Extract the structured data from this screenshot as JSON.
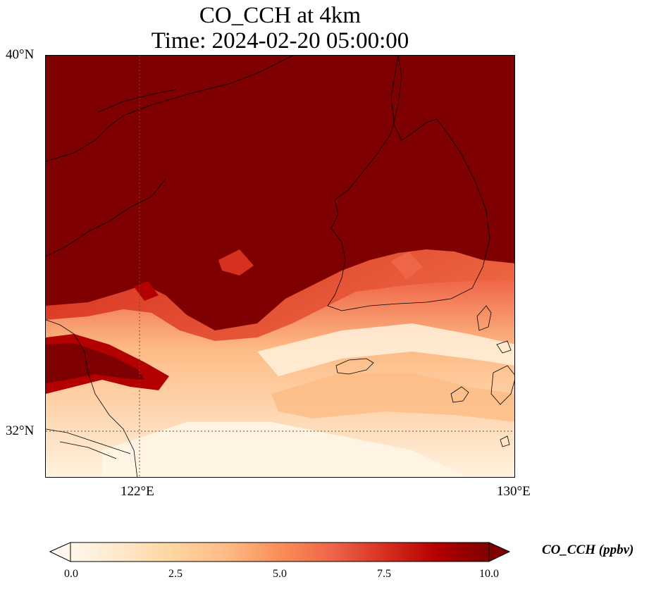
{
  "title": {
    "line1": "CO_CCH at 4km",
    "line2": "Time: 2024-02-20 05:00:00"
  },
  "map": {
    "lat_range": [
      31,
      40
    ],
    "lon_range": [
      120,
      130
    ],
    "gridlines": {
      "lat": [
        32
      ],
      "lon": [
        122
      ],
      "style": "dotted"
    },
    "lat_tick_labels": [
      "40°N",
      "32°N"
    ],
    "lon_tick_labels": [
      "122°E",
      "130°E"
    ],
    "colormap": "OrRd",
    "field_summary": "High CO_CCH (>10 ppbv, dark red) over the north and the Korean Peninsula; lower values (0–5 ppbv, pale) over the East China Sea south of ~34°N, with a dark-red tongue near 33°N off the Chinese coast"
  },
  "colorbar": {
    "label": "CO_CCH (ppbv)",
    "min": 0,
    "max": 10,
    "extend": "both",
    "ticks": [
      "0.0",
      "2.5",
      "5.0",
      "7.5",
      "10.0"
    ],
    "colors": [
      "#fff7ec",
      "#fee8c8",
      "#fdd49e",
      "#fdbb84",
      "#fc8d59",
      "#ef6548",
      "#d7301f",
      "#b30000",
      "#7f0000"
    ]
  }
}
